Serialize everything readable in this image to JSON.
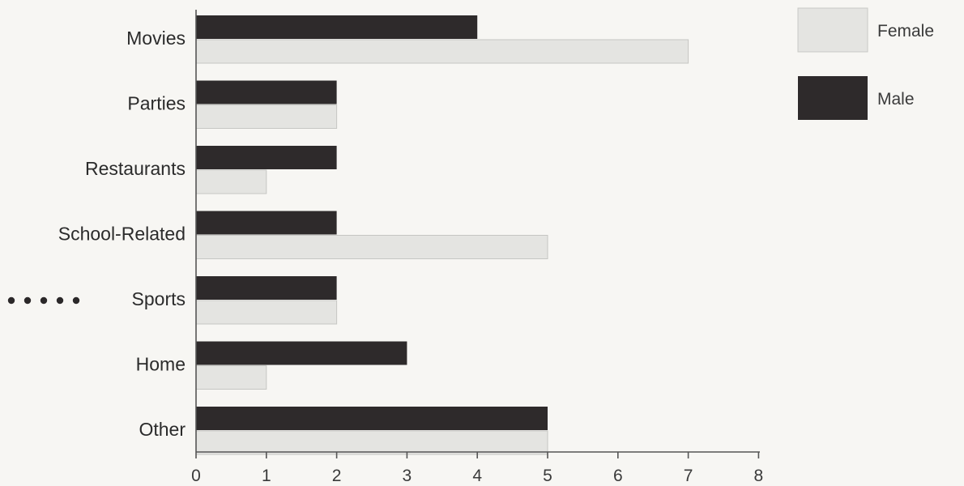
{
  "chart_data": {
    "type": "bar",
    "orientation": "horizontal",
    "categories": [
      "Movies",
      "Parties",
      "Restaurants",
      "School-Related",
      "Sports",
      "Home",
      "Other"
    ],
    "series": [
      {
        "name": "Male",
        "values": [
          4,
          2,
          2,
          2,
          2,
          3,
          5
        ]
      },
      {
        "name": "Female",
        "values": [
          7,
          2,
          1,
          5,
          2,
          1,
          5
        ]
      }
    ],
    "xticks": [
      "0",
      "1",
      "2",
      "3",
      "4",
      "5",
      "6",
      "7",
      "8"
    ],
    "xlim": [
      0,
      8
    ],
    "legend": {
      "position": "top-right",
      "entries": [
        "Female",
        "Male"
      ]
    },
    "grid": false,
    "colors": {
      "Male": "#2e2a2b",
      "Female": "#e4e4e1",
      "axis": "#555555"
    },
    "title": "",
    "xlabel": "",
    "ylabel": ""
  }
}
